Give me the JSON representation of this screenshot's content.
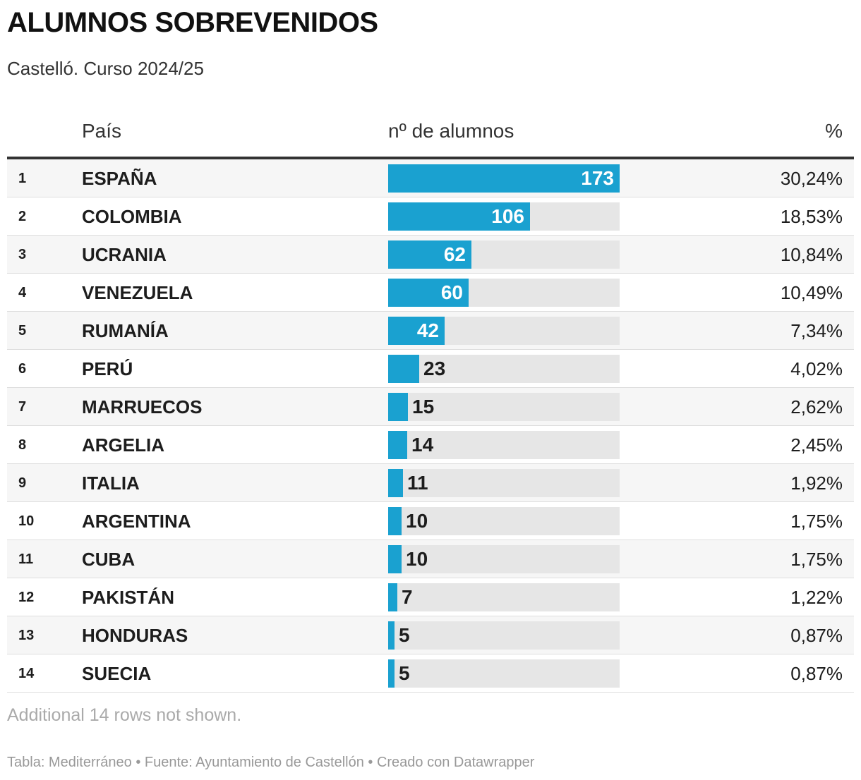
{
  "title": "ALUMNOS SOBREVENIDOS",
  "subtitle": "Castelló. Curso 2024/25",
  "columns": {
    "country": "País",
    "count": "nº de alumnos",
    "percent": "%"
  },
  "note": "Additional 14 rows not shown.",
  "footer": "Tabla: Mediterráneo • Fuente: Ayuntamiento de Castellón • Creado con Datawrapper",
  "colors": {
    "bar": "#1aa1d0",
    "track": "#e6e6e6"
  },
  "chart_data": {
    "type": "table",
    "max_value": 173,
    "rows": [
      {
        "rank": "1",
        "country": "ESPAÑA",
        "value": 173,
        "value_label": "173",
        "percent": "30,24%"
      },
      {
        "rank": "2",
        "country": "COLOMBIA",
        "value": 106,
        "value_label": "106",
        "percent": "18,53%"
      },
      {
        "rank": "3",
        "country": "UCRANIA",
        "value": 62,
        "value_label": "62",
        "percent": "10,84%"
      },
      {
        "rank": "4",
        "country": "VENEZUELA",
        "value": 60,
        "value_label": "60",
        "percent": "10,49%"
      },
      {
        "rank": "5",
        "country": "RUMANÍA",
        "value": 42,
        "value_label": "42",
        "percent": "7,34%"
      },
      {
        "rank": "6",
        "country": "PERÚ",
        "value": 23,
        "value_label": "23",
        "percent": "4,02%"
      },
      {
        "rank": "7",
        "country": "MARRUECOS",
        "value": 15,
        "value_label": "15",
        "percent": "2,62%"
      },
      {
        "rank": "8",
        "country": "ARGELIA",
        "value": 14,
        "value_label": "14",
        "percent": "2,45%"
      },
      {
        "rank": "9",
        "country": "ITALIA",
        "value": 11,
        "value_label": "11",
        "percent": "1,92%"
      },
      {
        "rank": "10",
        "country": "ARGENTINA",
        "value": 10,
        "value_label": "10",
        "percent": "1,75%"
      },
      {
        "rank": "11",
        "country": "CUBA",
        "value": 10,
        "value_label": "10",
        "percent": "1,75%"
      },
      {
        "rank": "12",
        "country": "PAKISTÁN",
        "value": 7,
        "value_label": "7",
        "percent": "1,22%"
      },
      {
        "rank": "13",
        "country": "HONDURAS",
        "value": 5,
        "value_label": "5",
        "percent": "0,87%"
      },
      {
        "rank": "14",
        "country": "SUECIA",
        "value": 5,
        "value_label": "5",
        "percent": "0,87%"
      }
    ]
  }
}
